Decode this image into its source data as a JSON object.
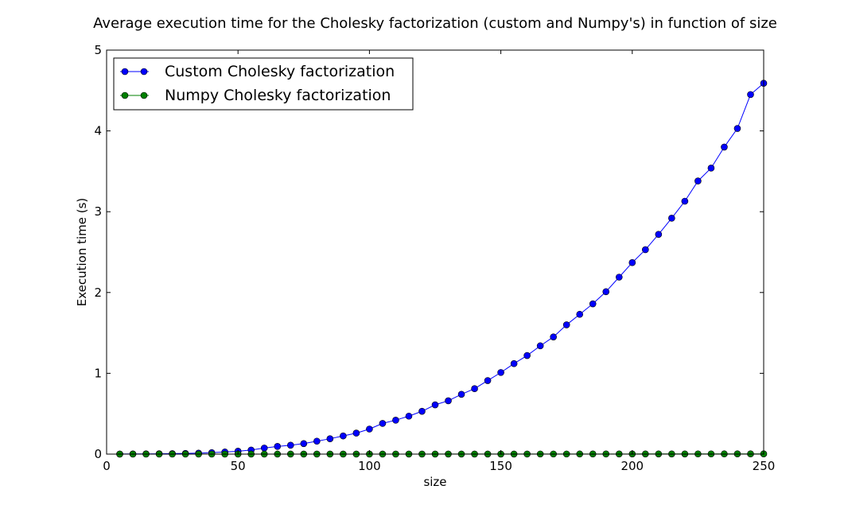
{
  "chart_data": {
    "type": "line",
    "title": "Average execution time for the Cholesky factorization (custom and Numpy's) in function of size",
    "xlabel": "size",
    "ylabel": "Execution time (s)",
    "xlim": [
      0,
      250
    ],
    "ylim": [
      0,
      5
    ],
    "xticks": [
      0,
      50,
      100,
      150,
      200,
      250
    ],
    "yticks": [
      0,
      1,
      2,
      3,
      4,
      5
    ],
    "grid": false,
    "legend": "top-left",
    "x": [
      5,
      10,
      15,
      20,
      25,
      30,
      35,
      40,
      45,
      50,
      55,
      60,
      65,
      70,
      75,
      80,
      85,
      90,
      95,
      100,
      105,
      110,
      115,
      120,
      125,
      130,
      135,
      140,
      145,
      150,
      155,
      160,
      165,
      170,
      175,
      180,
      185,
      190,
      195,
      200,
      205,
      210,
      215,
      220,
      225,
      230,
      235,
      240,
      245,
      250
    ],
    "series": [
      {
        "name": "Custom Cholesky factorization",
        "color": "#0000ff",
        "values": [
          0.001,
          0.002,
          0.003,
          0.004,
          0.006,
          0.008,
          0.012,
          0.018,
          0.026,
          0.036,
          0.05,
          0.075,
          0.095,
          0.11,
          0.13,
          0.16,
          0.19,
          0.225,
          0.26,
          0.31,
          0.38,
          0.42,
          0.47,
          0.53,
          0.61,
          0.66,
          0.74,
          0.81,
          0.91,
          1.01,
          1.12,
          1.22,
          1.34,
          1.45,
          1.6,
          1.73,
          1.86,
          2.01,
          2.19,
          2.37,
          2.53,
          2.72,
          2.92,
          3.13,
          3.38,
          3.54,
          3.8,
          4.03,
          4.45,
          4.59
        ]
      },
      {
        "name": "Numpy Cholesky factorization",
        "color": "#008000",
        "values": [
          0.0001,
          0.0001,
          0.0001,
          0.0001,
          0.0001,
          0.0001,
          0.0001,
          0.0001,
          0.0002,
          0.0002,
          0.0002,
          0.0002,
          0.0002,
          0.0003,
          0.0003,
          0.0003,
          0.0003,
          0.0004,
          0.0004,
          0.0005,
          0.0005,
          0.0005,
          0.0006,
          0.0006,
          0.0007,
          0.0007,
          0.0008,
          0.0008,
          0.0009,
          0.001,
          0.001,
          0.0011,
          0.0012,
          0.0013,
          0.0013,
          0.0014,
          0.0015,
          0.0016,
          0.0017,
          0.0018,
          0.0019,
          0.002,
          0.0021,
          0.0022,
          0.0024,
          0.0025,
          0.0026,
          0.0027,
          0.0029,
          0.003
        ]
      }
    ]
  }
}
